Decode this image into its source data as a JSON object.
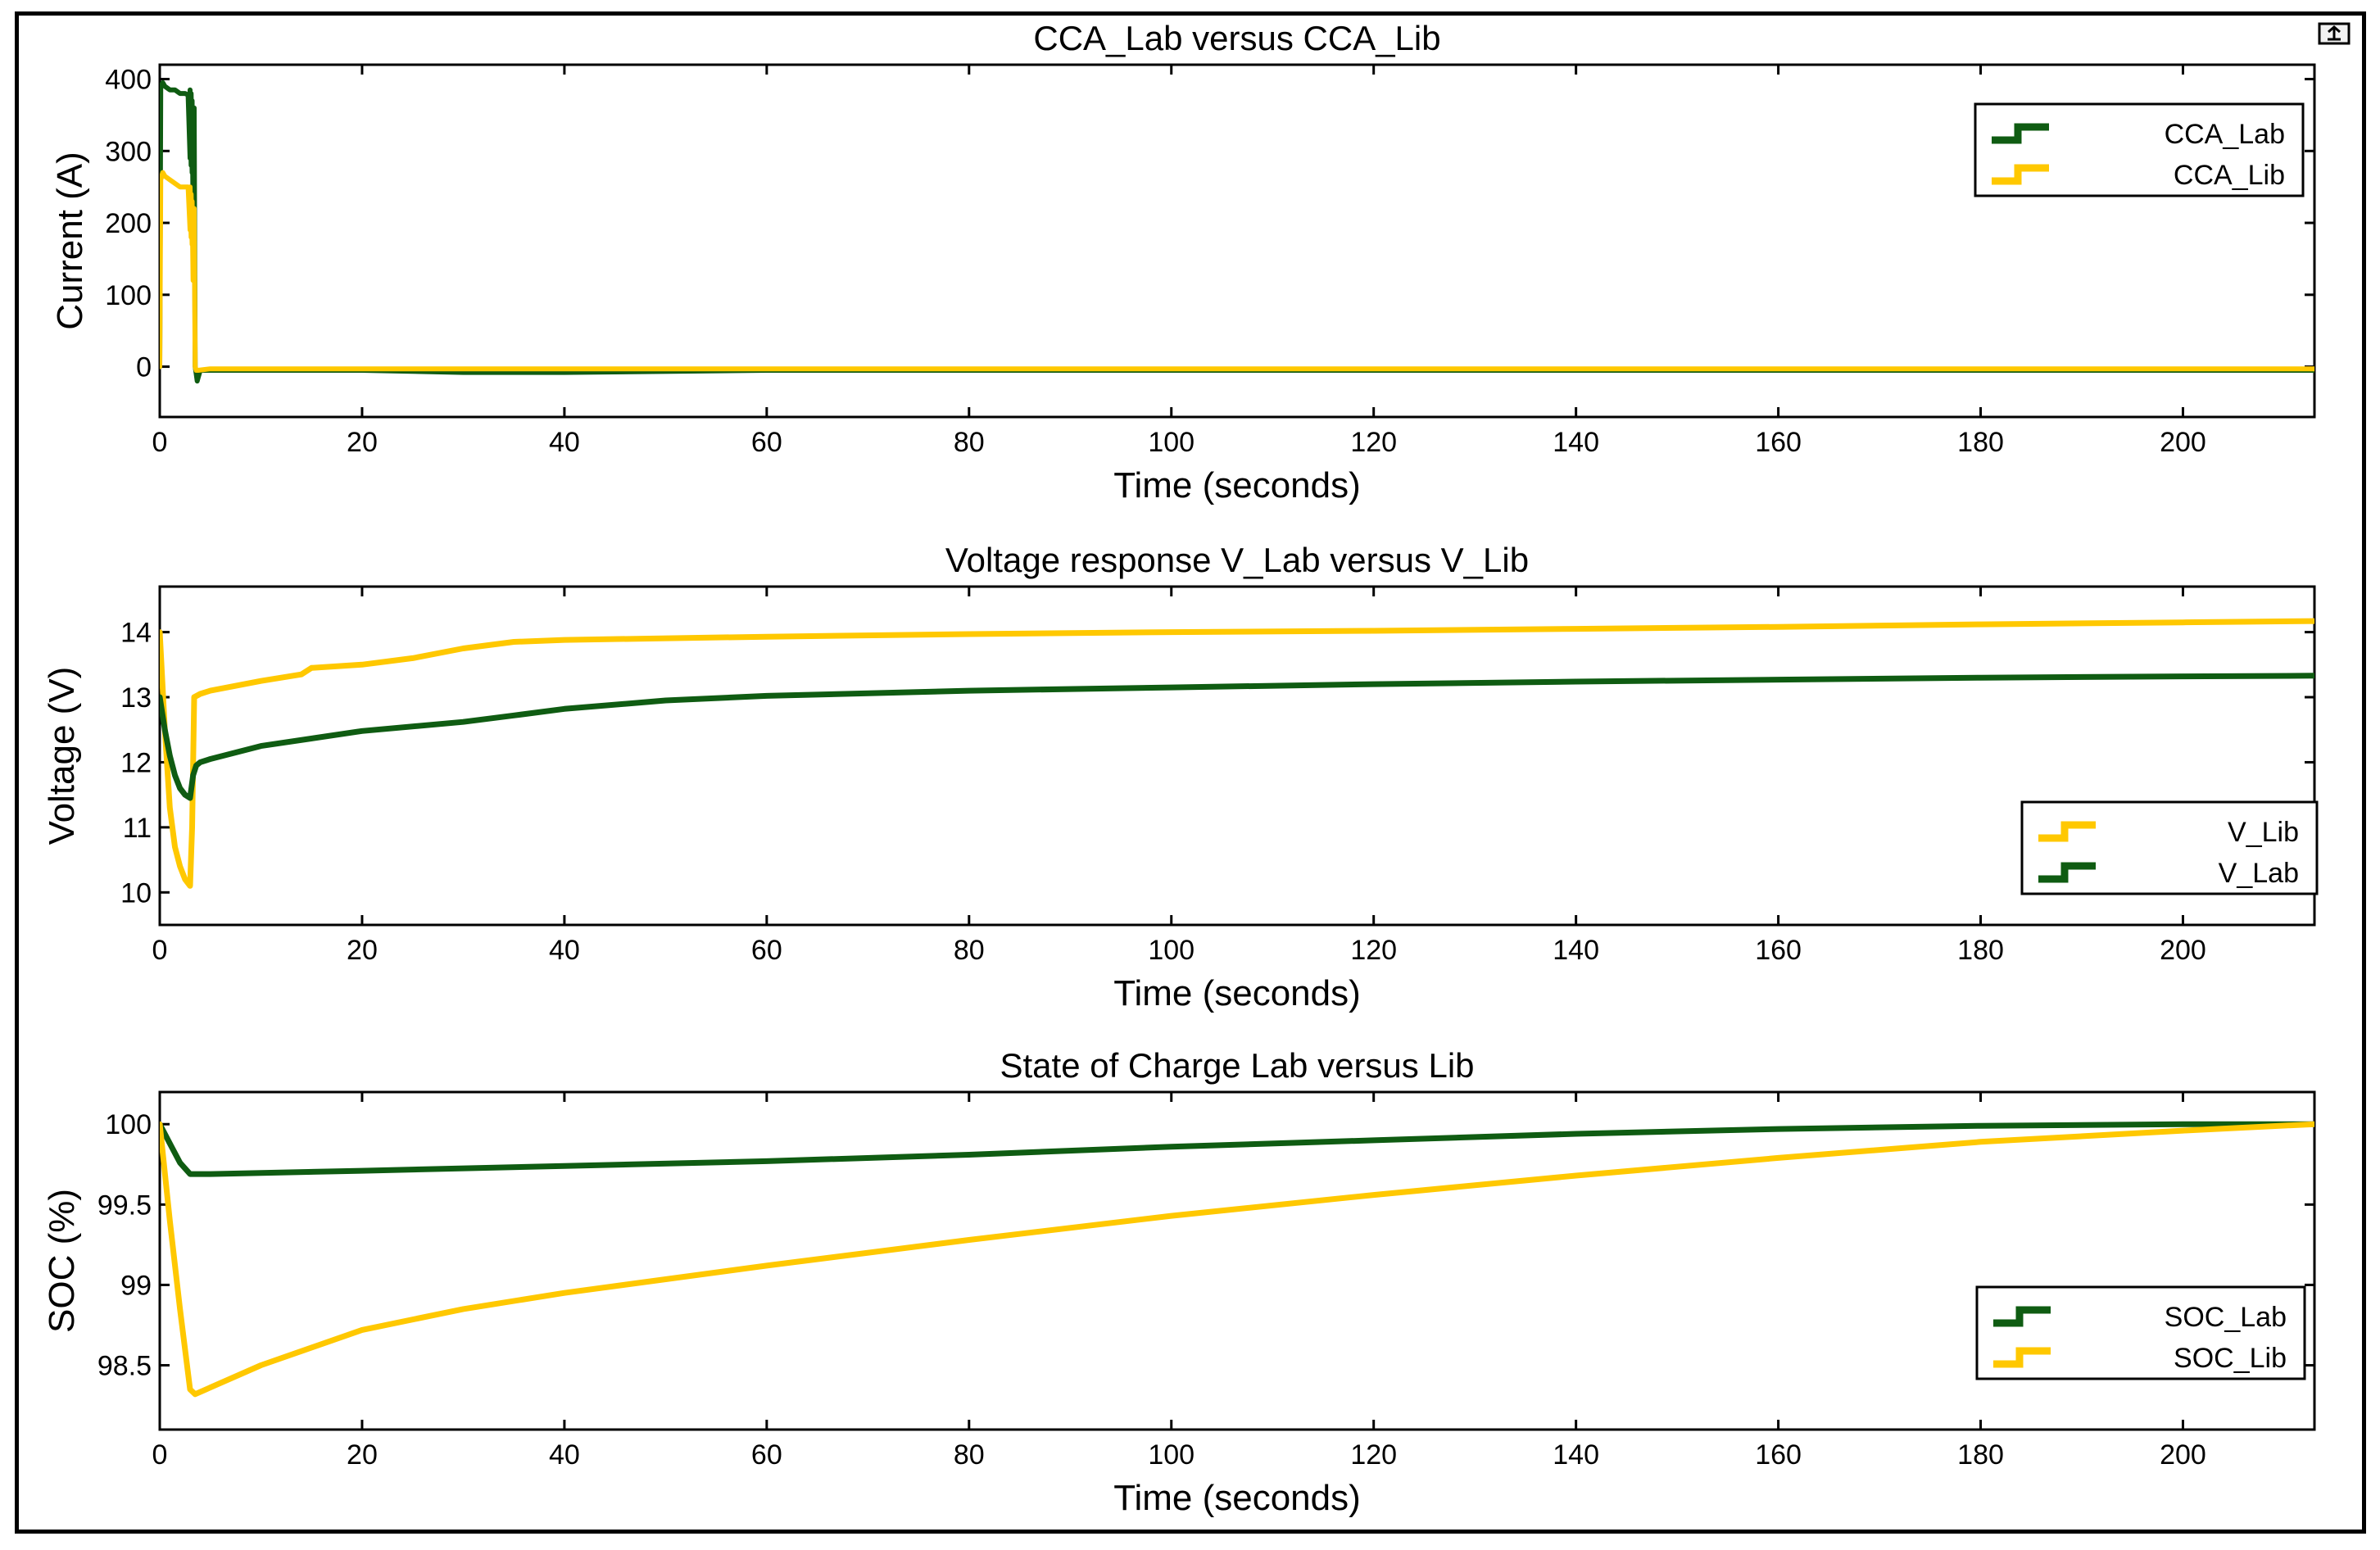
{
  "figure": {
    "export_icon": "export-figure-icon",
    "colors": {
      "lab": "#0f5c12",
      "lib": "#ffc800",
      "axis": "#000000",
      "background": "#ffffff"
    }
  },
  "chart_data": [
    {
      "type": "line",
      "title": "CCA_Lab versus CCA_Lib",
      "xlabel": "Time (seconds)",
      "ylabel": "Current (A)",
      "xlim": [
        0,
        213
      ],
      "ylim": [
        -70,
        420
      ],
      "xticks": [
        0,
        20,
        40,
        60,
        80,
        100,
        120,
        140,
        160,
        180,
        200
      ],
      "yticks": [
        0,
        100,
        200,
        300,
        400
      ],
      "ytick_labels": [
        "0",
        "100",
        "200",
        "300",
        "400"
      ],
      "legend_position": "top-right",
      "legend": [
        "CCA_Lab",
        "CCA_Lib"
      ],
      "series": [
        {
          "name": "CCA_Lab",
          "color": "#0f5c12",
          "width": 6,
          "x": [
            0,
            0.1,
            0.3,
            0.5,
            1,
            1.5,
            2,
            2.5,
            2.8,
            3.0,
            3.0,
            3.1,
            3.1,
            3.2,
            3.2,
            3.3,
            3.4,
            3.5,
            3.6,
            3.7,
            3.8,
            4,
            5,
            10,
            20,
            30,
            40,
            60,
            80,
            100,
            120,
            140,
            160,
            180,
            200,
            213
          ],
          "y": [
            0,
            390,
            395,
            390,
            385,
            385,
            380,
            380,
            378,
            290,
            385,
            280,
            380,
            270,
            370,
            210,
            360,
            0,
            -10,
            -20,
            -15,
            -5,
            -5,
            -5,
            -5,
            -8,
            -8,
            -5,
            -5,
            -5,
            -5,
            -5,
            -5,
            -5,
            -5,
            -5
          ]
        },
        {
          "name": "CCA_Lib",
          "color": "#ffc800",
          "width": 6,
          "x": [
            0,
            0.1,
            0.3,
            0.5,
            1,
            1.5,
            2,
            2.5,
            2.8,
            3.0,
            3.0,
            3.1,
            3.1,
            3.2,
            3.2,
            3.3,
            3.4,
            3.5,
            3.6,
            3.8,
            5,
            10,
            20,
            30,
            40,
            60,
            80,
            100,
            120,
            140,
            160,
            180,
            200,
            213
          ],
          "y": [
            0,
            260,
            270,
            265,
            260,
            255,
            250,
            250,
            250,
            190,
            250,
            180,
            240,
            170,
            230,
            120,
            220,
            0,
            -5,
            -5,
            -3,
            -3,
            -3,
            -3,
            -3,
            -3,
            -3,
            -3,
            -3,
            -3,
            -3,
            -3,
            -3,
            -3
          ]
        }
      ]
    },
    {
      "type": "line",
      "title": "Voltage response V_Lab versus V_Lib",
      "xlabel": "Time (seconds)",
      "ylabel": "Voltage (V)",
      "xlim": [
        0,
        213
      ],
      "ylim": [
        9.5,
        14.7
      ],
      "xticks": [
        0,
        20,
        40,
        60,
        80,
        100,
        120,
        140,
        160,
        180,
        200
      ],
      "yticks": [
        10,
        11,
        12,
        13,
        14
      ],
      "ytick_labels": [
        "10",
        "11",
        "12",
        "13",
        "14"
      ],
      "legend_position": "bottom-right",
      "legend": [
        "V_Lib",
        "V_Lab"
      ],
      "series": [
        {
          "name": "V_Lib",
          "color": "#ffc800",
          "width": 7,
          "x": [
            0,
            0.5,
            1,
            1.5,
            2,
            2.5,
            3,
            3.2,
            3.4,
            4,
            5,
            10,
            14,
            15,
            20,
            25,
            30,
            35,
            40,
            60,
            80,
            100,
            120,
            140,
            160,
            180,
            200,
            213
          ],
          "y": [
            14.0,
            12.5,
            11.3,
            10.7,
            10.4,
            10.2,
            10.1,
            11.0,
            13.0,
            13.05,
            13.1,
            13.25,
            13.35,
            13.45,
            13.5,
            13.6,
            13.75,
            13.85,
            13.88,
            13.93,
            13.97,
            14.0,
            14.02,
            14.05,
            14.08,
            14.12,
            14.15,
            14.17
          ]
        },
        {
          "name": "V_Lab",
          "color": "#0f5c12",
          "width": 7,
          "x": [
            0,
            0.5,
            1,
            1.5,
            2,
            2.5,
            3,
            3.3,
            3.6,
            4,
            5,
            10,
            20,
            30,
            35,
            40,
            50,
            60,
            80,
            100,
            120,
            140,
            160,
            180,
            200,
            213
          ],
          "y": [
            13.0,
            12.5,
            12.1,
            11.8,
            11.6,
            11.5,
            11.45,
            11.8,
            11.95,
            12.0,
            12.05,
            12.25,
            12.48,
            12.62,
            12.72,
            12.82,
            12.95,
            13.02,
            13.1,
            13.15,
            13.2,
            13.24,
            13.27,
            13.3,
            13.32,
            13.33
          ]
        }
      ]
    },
    {
      "type": "line",
      "title": "State of Charge Lab versus Lib",
      "xlabel": "Time (seconds)",
      "ylabel": "SOC (%)",
      "xlim": [
        0,
        213
      ],
      "ylim": [
        98.1,
        100.2
      ],
      "xticks": [
        0,
        20,
        40,
        60,
        80,
        100,
        120,
        140,
        160,
        180,
        200
      ],
      "yticks": [
        98.5,
        99,
        99.5,
        100
      ],
      "ytick_labels": [
        "98.5",
        "99",
        "99.5",
        "100"
      ],
      "legend_position": "bottom-right",
      "legend": [
        "SOC_Lab",
        "SOC_Lib"
      ],
      "series": [
        {
          "name": "SOC_Lab",
          "color": "#0f5c12",
          "width": 7,
          "x": [
            0,
            1,
            2,
            3,
            5,
            20,
            40,
            60,
            80,
            100,
            120,
            140,
            160,
            180,
            200,
            213
          ],
          "y": [
            100,
            99.88,
            99.76,
            99.69,
            99.69,
            99.71,
            99.74,
            99.77,
            99.81,
            99.86,
            99.9,
            99.94,
            99.97,
            99.99,
            100,
            100
          ]
        },
        {
          "name": "SOC_Lib",
          "color": "#ffc800",
          "width": 7,
          "x": [
            0,
            1,
            2,
            3,
            3.5,
            10,
            20,
            30,
            40,
            60,
            80,
            100,
            120,
            140,
            160,
            180,
            200,
            213
          ],
          "y": [
            100,
            99.4,
            98.85,
            98.35,
            98.32,
            98.5,
            98.72,
            98.85,
            98.95,
            99.12,
            99.28,
            99.43,
            99.56,
            99.68,
            99.79,
            99.89,
            99.96,
            100
          ]
        }
      ]
    }
  ]
}
